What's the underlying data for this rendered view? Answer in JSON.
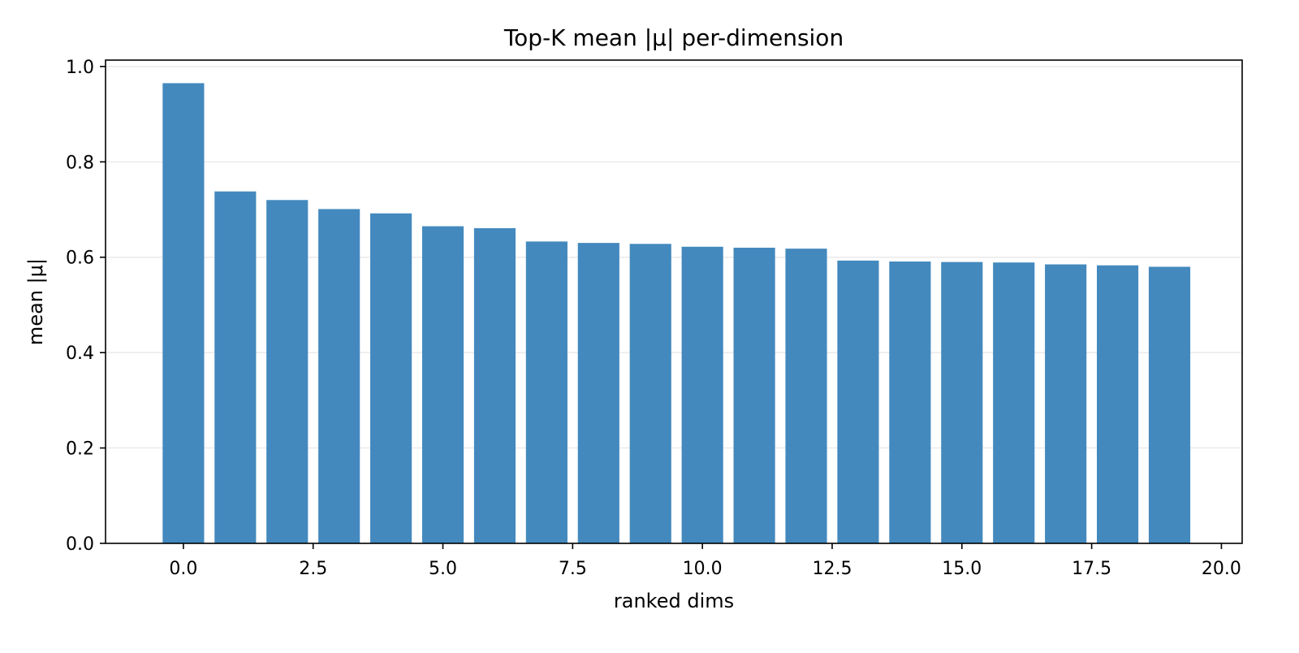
{
  "chart_data": {
    "type": "bar",
    "title": "Top-K mean |μ| per-dimension",
    "xlabel": "ranked dims",
    "ylabel": "mean |μ|",
    "x": [
      0,
      1,
      2,
      3,
      4,
      5,
      6,
      7,
      8,
      9,
      10,
      11,
      12,
      13,
      14,
      15,
      16,
      17,
      18,
      19
    ],
    "values": [
      0.965,
      0.738,
      0.72,
      0.701,
      0.692,
      0.665,
      0.661,
      0.633,
      0.63,
      0.628,
      0.622,
      0.62,
      0.618,
      0.593,
      0.591,
      0.59,
      0.589,
      0.585,
      0.583,
      0.58
    ],
    "bar_width": 0.8,
    "xlim": [
      -1.5,
      20.4
    ],
    "ylim": [
      0,
      1.0134
    ],
    "xticks": [
      0,
      2.5,
      5,
      7.5,
      10,
      12.5,
      15,
      17.5,
      20
    ],
    "xtick_labels": [
      "0.0",
      "2.5",
      "5.0",
      "7.5",
      "10.0",
      "12.5",
      "15.0",
      "17.5",
      "20.0"
    ],
    "yticks": [
      0,
      0.2,
      0.4,
      0.6,
      0.8,
      1.0
    ],
    "ytick_labels": [
      "0.0",
      "0.2",
      "0.4",
      "0.6",
      "0.8",
      "1.0"
    ],
    "grid": "horizontal",
    "legend": "none",
    "bar_color": "#4389be",
    "grid_color": "#e6e6e6"
  }
}
